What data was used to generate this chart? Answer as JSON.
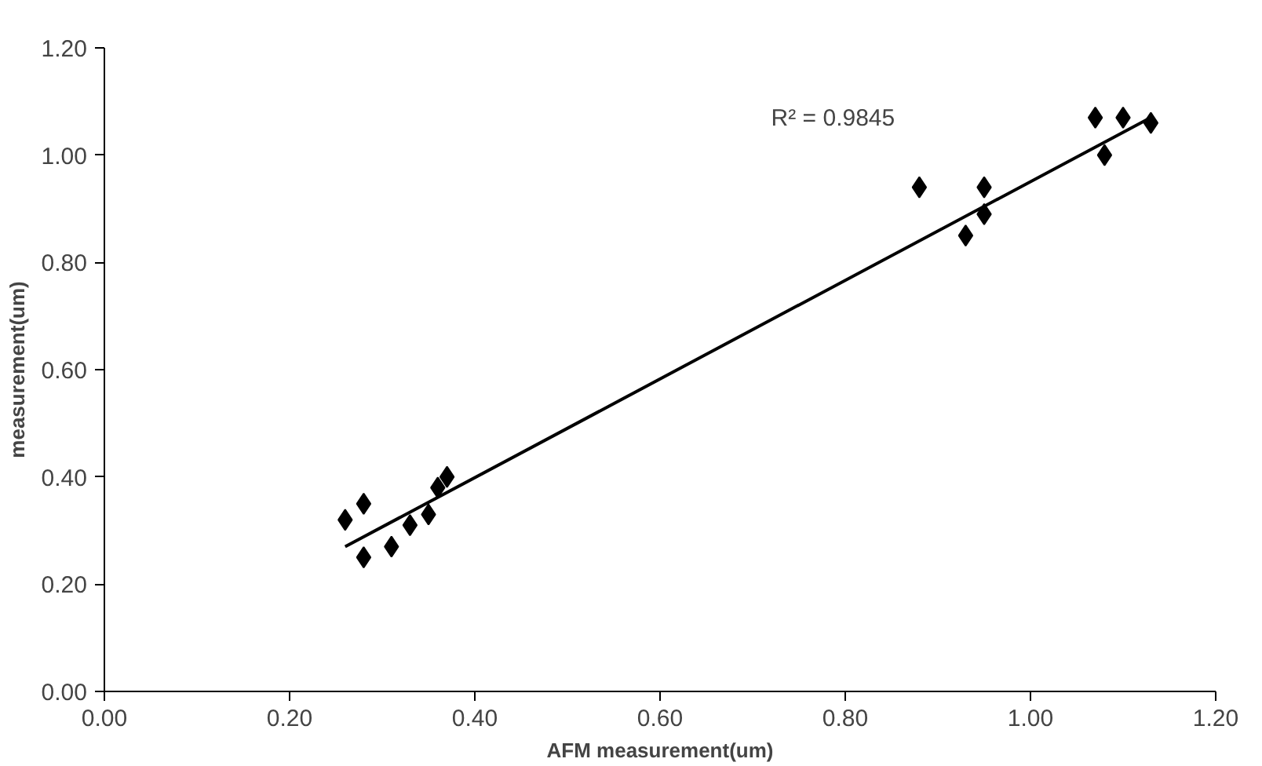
{
  "chart_data": {
    "type": "scatter",
    "xlabel": "AFM measurement(um)",
    "ylabel": "measurement(um)",
    "xlim": [
      0,
      1.2
    ],
    "ylim": [
      0,
      1.2
    ],
    "xticks": [
      {
        "value": 0,
        "label": "0.00"
      },
      {
        "value": 0.2,
        "label": "0.20"
      },
      {
        "value": 0.4,
        "label": "0.40"
      },
      {
        "value": 0.6,
        "label": "0.60"
      },
      {
        "value": 0.8,
        "label": "0.80"
      },
      {
        "value": 1.0,
        "label": "1.00"
      },
      {
        "value": 1.2,
        "label": "1.20"
      }
    ],
    "yticks": [
      {
        "value": 0,
        "label": "0.00"
      },
      {
        "value": 0.2,
        "label": "0.20"
      },
      {
        "value": 0.4,
        "label": "0.40"
      },
      {
        "value": 0.6,
        "label": "0.60"
      },
      {
        "value": 0.8,
        "label": "0.80"
      },
      {
        "value": 1.0,
        "label": "1.00"
      },
      {
        "value": 1.2,
        "label": "1.20"
      }
    ],
    "grid": false,
    "annotations": [
      "R² = 0.9845"
    ],
    "series": [
      {
        "marker": "diamond",
        "color": "#000000",
        "x": [
          0.26,
          0.28,
          0.28,
          0.31,
          0.33,
          0.35,
          0.36,
          0.37,
          0.88,
          0.93,
          0.95,
          0.95,
          1.07,
          1.08,
          1.1,
          1.13
        ],
        "values": [
          0.32,
          0.35,
          0.25,
          0.27,
          0.31,
          0.33,
          0.38,
          0.4,
          0.94,
          0.85,
          0.89,
          0.94,
          1.07,
          1.0,
          1.07,
          1.06
        ]
      },
      {
        "type": "line",
        "color": "#000000",
        "x": [
          0.26,
          1.13
        ],
        "values": [
          0.27,
          1.07
        ]
      }
    ]
  }
}
